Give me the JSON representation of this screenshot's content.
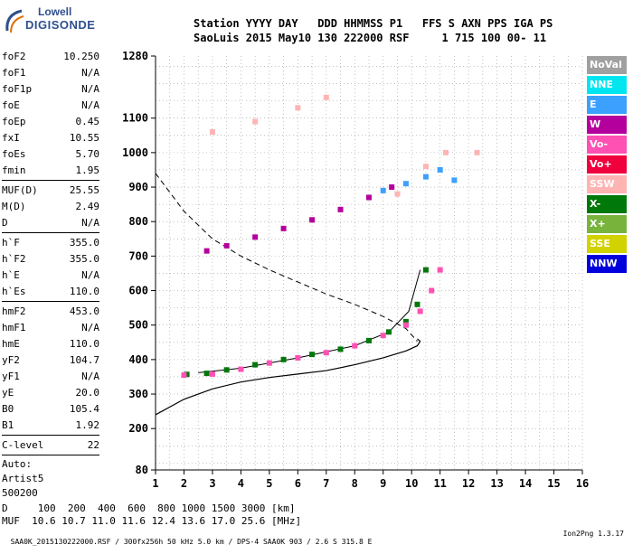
{
  "logo": {
    "line1": "Lowell",
    "line2": "DIGISONDE"
  },
  "header": {
    "line1": "Station YYYY DAY   DDD HHMMSS P1   FFS S AXN PPS IGA PS",
    "line2": "SaoLuis 2015 May10 130 222000 RSF     1 715 100 00- 11"
  },
  "params": {
    "group1": [
      {
        "k": "foF2",
        "v": "10.250"
      },
      {
        "k": "foF1",
        "v": "N/A"
      },
      {
        "k": "foF1p",
        "v": "N/A"
      },
      {
        "k": "foE",
        "v": "N/A"
      },
      {
        "k": "foEp",
        "v": "0.45"
      },
      {
        "k": "fxI",
        "v": "10.55"
      },
      {
        "k": "foEs",
        "v": "5.70"
      },
      {
        "k": "fmin",
        "v": "1.95"
      }
    ],
    "group2": [
      {
        "k": "MUF(D)",
        "v": "25.55"
      },
      {
        "k": "M(D)",
        "v": "2.49"
      },
      {
        "k": "D",
        "v": "N/A"
      }
    ],
    "group3": [
      {
        "k": "h`F",
        "v": "355.0"
      },
      {
        "k": "h`F2",
        "v": "355.0"
      },
      {
        "k": "h`E",
        "v": "N/A"
      },
      {
        "k": "h`Es",
        "v": "110.0"
      }
    ],
    "group4": [
      {
        "k": "hmF2",
        "v": "453.0"
      },
      {
        "k": "hmF1",
        "v": "N/A"
      },
      {
        "k": "hmE",
        "v": "110.0"
      },
      {
        "k": "yF2",
        "v": "104.7"
      },
      {
        "k": "yF1",
        "v": "N/A"
      },
      {
        "k": "yE",
        "v": "20.0"
      },
      {
        "k": "B0",
        "v": "105.4"
      },
      {
        "k": "B1",
        "v": "1.92"
      }
    ],
    "group5": [
      {
        "k": "C-level",
        "v": "22"
      }
    ],
    "auto": [
      "Auto:",
      "Artist5",
      "500200"
    ]
  },
  "legend": [
    {
      "label": "NoVal",
      "color": "#a0a0a0"
    },
    {
      "label": "NNE",
      "color": "#00e6f0"
    },
    {
      "label": "E",
      "color": "#3ca0ff"
    },
    {
      "label": "W",
      "color": "#b4009c"
    },
    {
      "label": "Vo-",
      "color": "#ff50b4"
    },
    {
      "label": "Vo+",
      "color": "#f0003c"
    },
    {
      "label": "SSW",
      "color": "#ffb4b4"
    },
    {
      "label": "X-",
      "color": "#00780a"
    },
    {
      "label": "X+",
      "color": "#78b43c"
    },
    {
      "label": "SSE",
      "color": "#d2d200"
    },
    {
      "label": "NNW",
      "color": "#0000dc"
    }
  ],
  "bottom": {
    "line1": "D     100  200  400  600  800 1000 1500 3000 [km]",
    "line2": "MUF  10.6 10.7 11.0 11.6 12.4 13.6 17.0 25.6 [MHz]"
  },
  "footer": {
    "text": "SAA0K_2015130222000.RSF / 300fx256h 50 kHz 5.0 km / DPS-4 SAA0K 903 / 2.6 S 315.8 E",
    "version": "Ion2Png 1.3.17"
  },
  "chart_data": {
    "type": "scatter",
    "title": "",
    "xlabel": "",
    "ylabel": "",
    "xlim": [
      1,
      16
    ],
    "ylim": [
      80,
      1280
    ],
    "x_ticks": [
      1,
      2,
      3,
      4,
      5,
      6,
      7,
      8,
      9,
      10,
      11,
      12,
      13,
      14,
      15,
      16
    ],
    "y_ticks": [
      80,
      200,
      300,
      400,
      500,
      600,
      700,
      800,
      900,
      1000,
      1100,
      1280
    ],
    "grid": true,
    "series": [
      {
        "name": "X-",
        "color": "#00780a",
        "x": [
          2.1,
          2.8,
          3.5,
          4.5,
          5.5,
          6.5,
          7.5,
          8.5,
          9.2,
          9.8,
          10.2,
          10.5
        ],
        "y": [
          357,
          360,
          370,
          385,
          400,
          415,
          430,
          455,
          480,
          510,
          560,
          660
        ]
      },
      {
        "name": "Vo-",
        "color": "#ff50b4",
        "x": [
          2.0,
          3.0,
          4.0,
          5.0,
          6.0,
          7.0,
          8.0,
          9.0,
          9.8,
          10.3,
          10.7,
          11.0
        ],
        "y": [
          355,
          358,
          372,
          390,
          405,
          420,
          440,
          470,
          500,
          540,
          600,
          660
        ]
      },
      {
        "name": "W",
        "color": "#b4009c",
        "x": [
          2.8,
          3.5,
          4.5,
          5.5,
          6.5,
          7.5,
          8.5,
          9.3
        ],
        "y": [
          715,
          730,
          755,
          780,
          805,
          835,
          870,
          900
        ]
      },
      {
        "name": "E",
        "color": "#3ca0ff",
        "x": [
          9.0,
          9.8,
          10.5,
          11.0,
          11.5
        ],
        "y": [
          890,
          910,
          930,
          950,
          920
        ]
      },
      {
        "name": "SSW",
        "color": "#ffb4b4",
        "x": [
          9.5,
          10.5,
          11.2,
          12.3,
          3.0,
          4.5,
          6.0,
          7.0
        ],
        "y": [
          880,
          960,
          1000,
          1000,
          1060,
          1090,
          1130,
          1160
        ]
      }
    ],
    "profile_curve": {
      "x": [
        1.0,
        2.0,
        3.0,
        4.0,
        5.0,
        6.0,
        7.0,
        8.0,
        9.0,
        9.8,
        10.2,
        10.3,
        10.2
      ],
      "y": [
        240,
        285,
        315,
        335,
        348,
        358,
        368,
        385,
        405,
        425,
        440,
        453,
        460
      ]
    },
    "muf_curve": {
      "x": [
        1.0,
        2.0,
        3.0,
        4.0,
        5.0,
        6.0,
        7.0,
        8.0,
        9.0,
        9.8,
        10.2
      ],
      "y": [
        940,
        830,
        750,
        700,
        660,
        625,
        590,
        560,
        525,
        490,
        453
      ]
    },
    "theory_curve": {
      "x": [
        2.5,
        4.0,
        6.0,
        8.0,
        9.2,
        9.9,
        10.3
      ],
      "y": [
        362,
        375,
        405,
        440,
        480,
        540,
        660
      ]
    }
  }
}
